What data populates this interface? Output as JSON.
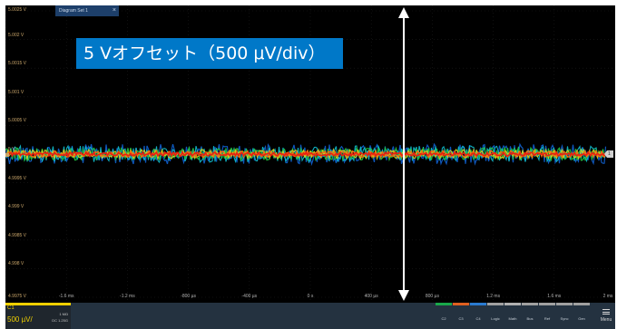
{
  "diagram_tab": {
    "label": "Diagram Set 1",
    "close": "×"
  },
  "banner": "5 Vオフセット（500 μV/div）",
  "y_axis": {
    "labels": [
      "5.0025 V",
      "5.002 V",
      "5.0015 V",
      "5.001 V",
      "5.0005 V",
      "5 V",
      "4.9995 V",
      "4.999 V",
      "4.9985 V",
      "4.998 V",
      "4.9975 V"
    ]
  },
  "x_axis": {
    "labels": [
      "-1.6 ms",
      "-1.2 ms",
      "-800 µs",
      "-400 µs",
      "0 s",
      "400 µs",
      "800 µs",
      "1.2 ms",
      "1.6 ms",
      "2 ms"
    ]
  },
  "channel": {
    "name": "C1",
    "scale": "500 µV/",
    "meta1": "1 MΩ",
    "meta2": "DC 1.25G",
    "color": "#f0d000"
  },
  "marker": {
    "label": "1"
  },
  "toolbar": [
    {
      "label": "C2",
      "color": "#19a84a"
    },
    {
      "label": "C3",
      "color": "#e06020"
    },
    {
      "label": "C4",
      "color": "#2a7ad0"
    },
    {
      "label": "Logic",
      "color": "#a0a0a0"
    },
    {
      "label": "Math",
      "color": "#b0b0b0"
    },
    {
      "label": "Bus",
      "color": "#a0a0a0"
    },
    {
      "label": "Ref",
      "color": "#a0a0a0"
    },
    {
      "label": "Sync",
      "color": "#a0a0a0"
    },
    {
      "label": "Gen",
      "color": "#a0a0a0"
    }
  ],
  "menu": {
    "label": "Menu"
  }
}
